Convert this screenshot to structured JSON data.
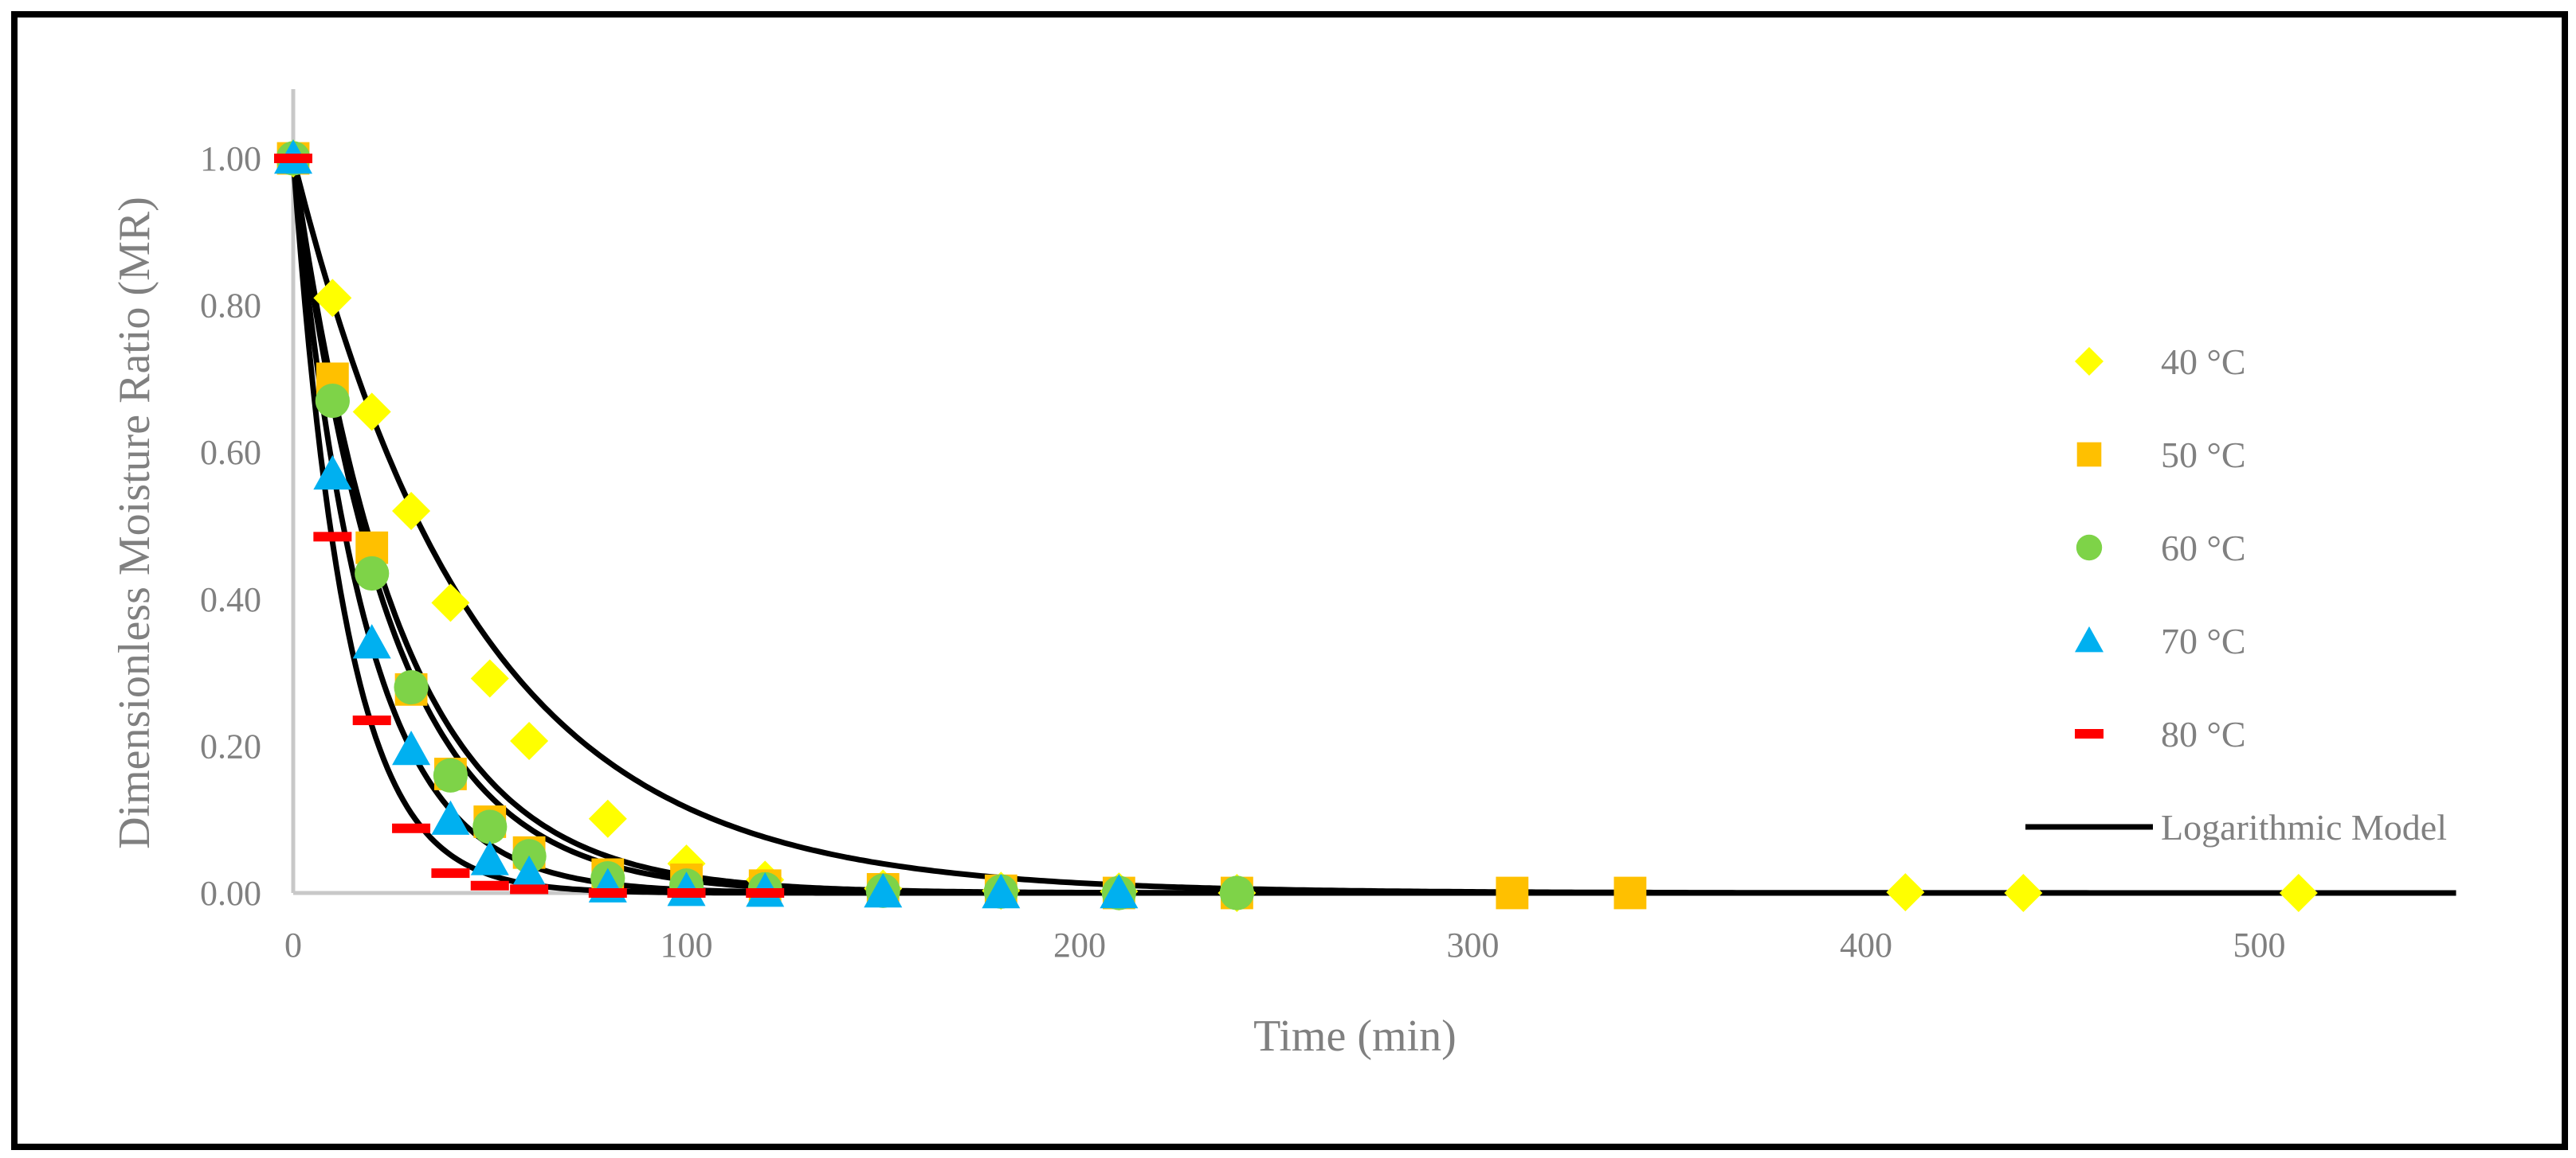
{
  "chart_data": {
    "type": "scatter",
    "xlabel": "Time (min)",
    "ylabel": "Dimensionless Moisture Ratio (MR)",
    "xlim": [
      0,
      550
    ],
    "ylim": [
      0,
      1.1
    ],
    "x_ticks": [
      "0",
      "100",
      "200",
      "300",
      "400",
      "500"
    ],
    "y_ticks": [
      "0.00",
      "0.20",
      "0.40",
      "0.60",
      "0.80",
      "1.00"
    ],
    "grid": false,
    "legend_position": "right",
    "series": [
      {
        "name": "40 °C",
        "marker": "diamond",
        "color": "#FFFF00",
        "x": [
          0,
          10,
          20,
          30,
          40,
          50,
          60,
          80,
          100,
          120,
          150,
          180,
          210,
          240,
          410,
          440,
          510
        ],
        "y": [
          1.0,
          0.81,
          0.655,
          0.52,
          0.395,
          0.292,
          0.207,
          0.101,
          0.04,
          0.018,
          0.006,
          0.003,
          0.002,
          0.0,
          0.001,
          0.0,
          0.0
        ]
      },
      {
        "name": "50 °C",
        "marker": "square",
        "color": "#FFC000",
        "x": [
          0,
          10,
          20,
          30,
          40,
          50,
          60,
          80,
          100,
          120,
          150,
          180,
          210,
          240,
          310,
          340
        ],
        "y": [
          1.0,
          0.7,
          0.47,
          0.277,
          0.162,
          0.097,
          0.055,
          0.025,
          0.018,
          0.01,
          0.005,
          0.003,
          0.0,
          0.0,
          0.0,
          0.0
        ]
      },
      {
        "name": "60 °C",
        "marker": "circle",
        "color": "#7ED348",
        "x": [
          0,
          10,
          20,
          30,
          40,
          50,
          60,
          80,
          100,
          120,
          150,
          180,
          210,
          240
        ],
        "y": [
          1.0,
          0.67,
          0.435,
          0.28,
          0.16,
          0.09,
          0.05,
          0.02,
          0.01,
          0.005,
          0.003,
          0.002,
          0.0,
          0.0
        ]
      },
      {
        "name": "70 °C",
        "marker": "triangle",
        "color": "#00B0F0",
        "x": [
          0,
          10,
          20,
          30,
          40,
          50,
          60,
          80,
          100,
          120,
          150,
          180,
          210
        ],
        "y": [
          1.0,
          0.57,
          0.34,
          0.195,
          0.1,
          0.045,
          0.025,
          0.008,
          0.003,
          0.002,
          0.001,
          0.0,
          0.0
        ]
      },
      {
        "name": "80 °C",
        "marker": "dash",
        "color": "#FF0000",
        "x": [
          0,
          10,
          20,
          30,
          40,
          50,
          60,
          80,
          100,
          120
        ],
        "y": [
          1.0,
          0.485,
          0.235,
          0.088,
          0.027,
          0.01,
          0.005,
          0.0,
          0.0,
          0.0
        ]
      }
    ],
    "model_curves": {
      "name": "Logarithmic Model",
      "color": "#000000",
      "curves": [
        {
          "k": 0.0215,
          "a": 1.0
        },
        {
          "k": 0.0375,
          "a": 1.0
        },
        {
          "k": 0.0405,
          "a": 1.0
        },
        {
          "k": 0.0545,
          "a": 1.0
        },
        {
          "k": 0.074,
          "a": 1.0
        }
      ]
    }
  }
}
